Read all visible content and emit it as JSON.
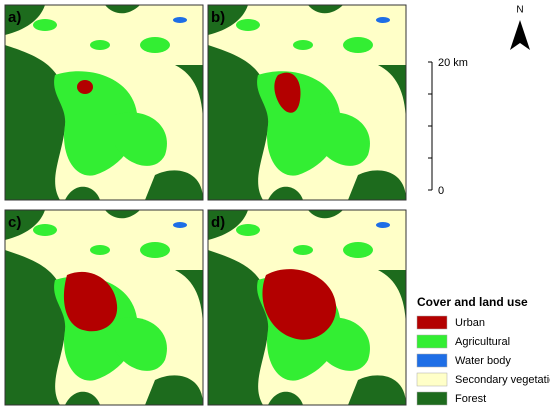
{
  "panels": [
    {
      "label": "a)"
    },
    {
      "label": "b)"
    },
    {
      "label": "c)"
    },
    {
      "label": "d)"
    }
  ],
  "north": "N",
  "scale": {
    "max_label": "20 km",
    "min_label": "0"
  },
  "legend": {
    "title": "Cover and land use",
    "items": [
      {
        "name": "Urban",
        "color": "#b30000"
      },
      {
        "name": "Agricultural",
        "color": "#33ee33"
      },
      {
        "name": "Water body",
        "color": "#1e6ee6"
      },
      {
        "name": "Secondary vegetation",
        "color": "#ffffc8"
      },
      {
        "name": "Forest",
        "color": "#1d6b1d"
      }
    ]
  }
}
